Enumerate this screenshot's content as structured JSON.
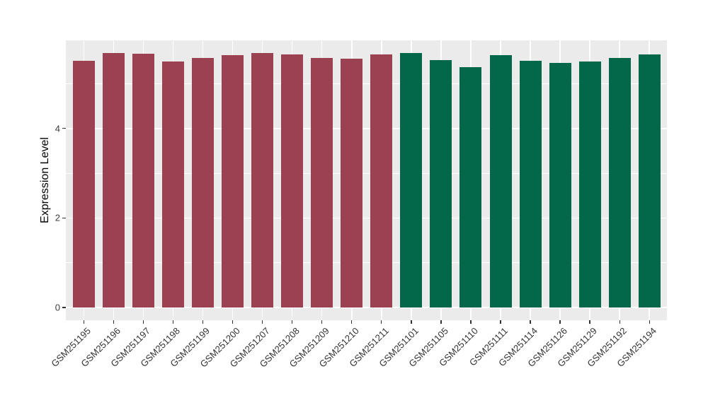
{
  "chart_data": {
    "type": "bar",
    "title": "",
    "xlabel": "",
    "ylabel": "Expression Level",
    "categories": [
      "GSM251195",
      "GSM251196",
      "GSM251197",
      "GSM251198",
      "GSM251199",
      "GSM251200",
      "GSM251207",
      "GSM251208",
      "GSM251209",
      "GSM251210",
      "GSM251211",
      "GSM251101",
      "GSM251105",
      "GSM251110",
      "GSM251111",
      "GSM251114",
      "GSM251126",
      "GSM251129",
      "GSM251192",
      "GSM251194"
    ],
    "values": [
      5.52,
      5.69,
      5.67,
      5.5,
      5.58,
      5.64,
      5.68,
      5.66,
      5.58,
      5.56,
      5.65,
      5.68,
      5.53,
      5.37,
      5.64,
      5.51,
      5.46,
      5.49,
      5.58,
      5.65
    ],
    "group_of_bar": [
      0,
      0,
      0,
      0,
      0,
      0,
      0,
      0,
      0,
      0,
      0,
      1,
      1,
      1,
      1,
      1,
      1,
      1,
      1,
      1
    ],
    "group_colors": [
      "#9C4151",
      "#036849"
    ],
    "y_ticks": [
      0,
      2,
      4
    ],
    "y_minor_gridlines": [
      1,
      3,
      5
    ],
    "ylim": [
      -0.28,
      5.98
    ],
    "grid": true,
    "legend_position": "none",
    "panel_background": "#EBEBEB",
    "gridline_color": "#FFFFFF",
    "axis_text_color": "#3D3D3D"
  }
}
